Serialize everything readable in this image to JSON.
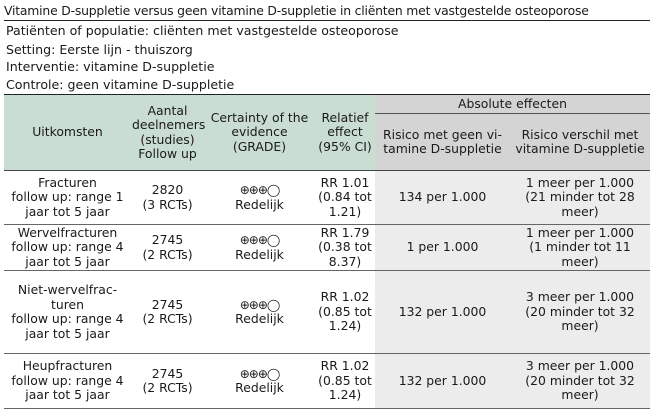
{
  "title": "Vitamine D-suppletie versus geen vitamine D-suppletie in cliënten met vastgestelde osteoporose",
  "pico": {
    "population": "Patiënten of populatie: cliënten met vastgestelde osteoporose",
    "setting": "Setting: Eerste lijn - thuiszorg",
    "intervention": "Interventie: vitamine D-suppletie",
    "control": "Controle: geen vitamine D-suppletie"
  },
  "headers": {
    "outcomes": "Uitkomsten",
    "participants": [
      "Aantal",
      "deelnemers",
      "(studies)",
      "Follow up"
    ],
    "certainty": [
      "Certainty of the",
      "evidence",
      "(GRADE)"
    ],
    "relative": [
      "Relatief",
      "effect",
      "(95% CI)"
    ],
    "absolute_group": "Absolute effecten",
    "risk_without": [
      "Risico met geen vi-",
      "tamine D-suppletie"
    ],
    "risk_difference": [
      "Risico verschil met",
      "vitamine D-suppletie"
    ]
  },
  "rows": [
    {
      "outcome": [
        "Fracturen",
        "follow up: range 1",
        "jaar tot 5 jaar"
      ],
      "participants": [
        "2820",
        "(3 RCTs)"
      ],
      "certainty_symbols": "⊕⊕⊕◯",
      "certainty_label": "Redelijk",
      "relative": [
        "RR 1.01",
        "(0.84 tot",
        "1.21)"
      ],
      "risk_without": "134 per 1.000",
      "risk_difference": [
        "1 meer per 1.000",
        "(21 minder tot 28",
        "meer)"
      ]
    },
    {
      "outcome": [
        "Wervelfracturen",
        "follow up: range 4",
        "jaar tot 5 jaar"
      ],
      "participants": [
        "2745",
        "(2 RCTs)"
      ],
      "certainty_symbols": "⊕⊕⊕◯",
      "certainty_label": "Redelijk",
      "relative": [
        "RR 1.79",
        "(0.38 tot",
        "8.37)"
      ],
      "risk_without": "1 per 1.000",
      "risk_difference": [
        "1 meer per 1.000",
        "(1 minder tot 11 meer)"
      ]
    },
    {
      "outcome": [
        "Niet-wervelfrac-",
        "turen",
        "follow up: range 4",
        "jaar tot 5 jaar"
      ],
      "participants": [
        "2745",
        "(2 RCTs)"
      ],
      "certainty_symbols": "⊕⊕⊕◯",
      "certainty_label": "Redelijk",
      "relative": [
        "RR 1.02",
        "(0.85 tot",
        "1.24)"
      ],
      "risk_without": "132 per 1.000",
      "risk_difference": [
        "3 meer per 1.000",
        "(20 minder tot 32",
        "meer)"
      ]
    },
    {
      "outcome": [
        "Heupfracturen",
        "follow up: range 4",
        "jaar tot 5 jaar"
      ],
      "participants": [
        "2745",
        "(2 RCTs)"
      ],
      "certainty_symbols": "⊕⊕⊕◯",
      "certainty_label": "Redelijk",
      "relative": [
        "RR 1.02",
        "(0.85 tot",
        "1.24)"
      ],
      "risk_without": "132 per 1.000",
      "risk_difference": [
        "3 meer per 1.000",
        "(20 minder tot 32",
        "meer)"
      ]
    }
  ],
  "colors": {
    "header_green": "#c9ddd2",
    "header_grey": "#d4d4d4",
    "cell_grey": "#ececec"
  }
}
